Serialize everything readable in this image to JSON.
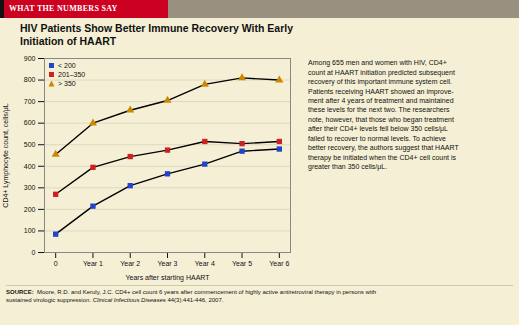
{
  "chart_data": {
    "type": "line",
    "header": "WHAT THE NUMBERS SAY",
    "title": "HIV Patients Show Better Immune Recovery With Early\nInitiation of HAART",
    "x": [
      0,
      1,
      2,
      3,
      4,
      5,
      6
    ],
    "series": [
      {
        "name": "< 200",
        "color": "#2244cc",
        "marker": "square",
        "values": [
          85,
          215,
          310,
          365,
          410,
          470,
          480
        ]
      },
      {
        "name": "201–350",
        "color": "#cc2222",
        "marker": "square",
        "values": [
          270,
          395,
          445,
          475,
          515,
          505,
          515
        ]
      },
      {
        "name": "> 350",
        "color": "#cc8800",
        "marker": "triangle",
        "values": [
          455,
          600,
          660,
          705,
          780,
          810,
          800
        ]
      }
    ],
    "xlabel": "Years after starting HAART",
    "ylabel": "CD4+ Lymphocyte count, cells/μL",
    "xlim": [
      -0.3,
      6.3
    ],
    "xticks": [
      0,
      {
        "value": 1,
        "label": "Year 1"
      },
      {
        "value": 2,
        "label": "Year 2"
      },
      {
        "value": 3,
        "label": "Year 3"
      },
      {
        "value": 4,
        "label": "Year 4"
      },
      {
        "value": 5,
        "label": "Year 5"
      },
      {
        "value": 6,
        "label": "Year 6"
      }
    ],
    "ylim": [
      0,
      900
    ],
    "yticks": [
      0,
      100,
      200,
      300,
      400,
      500,
      600,
      700,
      800,
      900
    ],
    "grid": true,
    "legend": "upper left",
    "annotation": "Among 655 men and women with HIV, CD4+\ncount at HAART initiation predicted subsequent\nrecovery of this important immune system cell.\nPatients receiving HAART showed an improve-\nment after 4 years of treatment and maintained\nthese levels for the next two. The researchers\nnote, however, that those who began treatment\nafter their CD4+ levels fell below 350 cells/μL\nfailed to recover to normal levels. To achieve\nbetter recovery, the authors suggest that HAART\ntherapy be initiated when the CD4+ cell count is\ngreater than 350 cells/μL.",
    "source": [
      "SOURCE:",
      "  Moore, R.D. and Keruly, J.C. CD4+ cell count 6 years after commencement of highly active antiretroviral therapy in persons with\nsustained virologic suppression. ",
      "Clinical Infectious Diseases",
      " 44(3):441-446, 2007."
    ]
  }
}
